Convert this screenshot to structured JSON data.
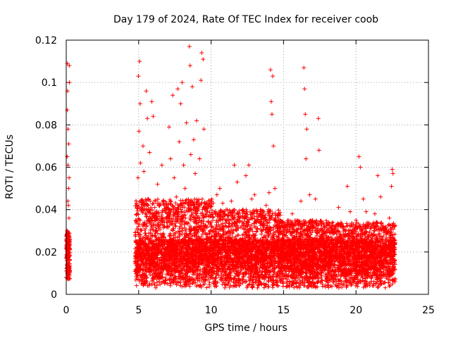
{
  "chart_data": {
    "type": "scatter",
    "title": "Day 179 of 2024, Rate Of TEC Index for receiver coob",
    "xlabel": "GPS time / hours",
    "ylabel": "ROTI / TECUs",
    "xlim": [
      0,
      25
    ],
    "ylim": [
      0,
      0.12
    ],
    "x_ticks": [
      0,
      5,
      10,
      15,
      20,
      25
    ],
    "y_ticks": [
      0,
      0.02,
      0.04,
      0.06,
      0.08,
      0.1,
      0.12
    ],
    "x_tick_labels": [
      "0",
      "5",
      "10",
      "15",
      "20",
      "25"
    ],
    "y_tick_labels": [
      "0",
      "0.02",
      "0.04",
      "0.06",
      "0.08",
      "0.1",
      "0.12"
    ],
    "grid": true,
    "marker": "+",
    "series": [
      {
        "name": "ROTI",
        "color": "#ff0000",
        "points": [
          [
            0.02,
            0.011
          ],
          [
            0.04,
            0.008
          ],
          [
            0.05,
            0.018
          ],
          [
            0.06,
            0.03
          ],
          [
            0.06,
            0.065
          ],
          [
            0.07,
            0.087
          ],
          [
            0.08,
            0.109
          ],
          [
            0.09,
            0.096
          ],
          [
            0.1,
            0.014
          ],
          [
            0.11,
            0.044
          ],
          [
            0.12,
            0.061
          ],
          [
            0.12,
            0.078
          ],
          [
            0.13,
            0.01
          ],
          [
            0.14,
            0.027
          ],
          [
            0.15,
            0.042
          ],
          [
            0.16,
            0.05
          ],
          [
            0.17,
            0.071
          ],
          [
            0.18,
            0.012
          ],
          [
            0.19,
            0.036
          ],
          [
            0.2,
            0.055
          ],
          [
            0.21,
            0.108
          ],
          [
            0.22,
            0.1
          ],
          [
            0.23,
            0.009
          ],
          [
            0.24,
            0.016
          ],
          [
            0.25,
            0.021
          ],
          [
            4.82,
            0.011
          ],
          [
            4.86,
            0.02
          ],
          [
            4.9,
            0.038
          ],
          [
            4.95,
            0.055
          ],
          [
            4.98,
            0.103
          ],
          [
            5.02,
            0.077
          ],
          [
            5.06,
            0.11
          ],
          [
            5.1,
            0.09
          ],
          [
            5.12,
            0.062
          ],
          [
            5.16,
            0.04
          ],
          [
            5.2,
            0.024
          ],
          [
            5.25,
            0.015
          ],
          [
            5.3,
            0.07
          ],
          [
            5.36,
            0.058
          ],
          [
            5.45,
            0.031
          ],
          [
            5.52,
            0.096
          ],
          [
            5.6,
            0.083
          ],
          [
            5.68,
            0.045
          ],
          [
            5.75,
            0.067
          ],
          [
            5.82,
            0.029
          ],
          [
            5.9,
            0.091
          ],
          [
            6.0,
            0.084
          ],
          [
            6.1,
            0.019
          ],
          [
            6.2,
            0.037
          ],
          [
            6.3,
            0.052
          ],
          [
            6.4,
            0.043
          ],
          [
            6.5,
            0.033
          ],
          [
            6.6,
            0.061
          ],
          [
            6.7,
            0.028
          ],
          [
            6.8,
            0.017
          ],
          [
            6.9,
            0.041
          ],
          [
            7.0,
            0.034
          ],
          [
            7.1,
            0.079
          ],
          [
            7.2,
            0.064
          ],
          [
            7.35,
            0.094
          ],
          [
            7.45,
            0.055
          ],
          [
            7.6,
            0.046
          ],
          [
            7.7,
            0.097
          ],
          [
            7.8,
            0.072
          ],
          [
            7.9,
            0.09
          ],
          [
            8.0,
            0.1
          ],
          [
            8.1,
            0.061
          ],
          [
            8.2,
            0.05
          ],
          [
            8.3,
            0.081
          ],
          [
            8.4,
            0.039
          ],
          [
            8.5,
            0.117
          ],
          [
            8.55,
            0.108
          ],
          [
            8.6,
            0.066
          ],
          [
            8.7,
            0.098
          ],
          [
            8.8,
            0.073
          ],
          [
            8.9,
            0.057
          ],
          [
            9.0,
            0.082
          ],
          [
            9.1,
            0.044
          ],
          [
            9.2,
            0.064
          ],
          [
            9.3,
            0.101
          ],
          [
            9.35,
            0.114
          ],
          [
            9.45,
            0.111
          ],
          [
            9.5,
            0.078
          ],
          [
            9.6,
            0.029
          ],
          [
            9.8,
            0.037
          ],
          [
            10.0,
            0.034
          ],
          [
            10.2,
            0.026
          ],
          [
            10.4,
            0.047
          ],
          [
            10.6,
            0.05
          ],
          [
            10.8,
            0.043
          ],
          [
            11.0,
            0.024
          ],
          [
            11.2,
            0.032
          ],
          [
            11.4,
            0.044
          ],
          [
            11.6,
            0.061
          ],
          [
            11.8,
            0.053
          ],
          [
            12.0,
            0.036
          ],
          [
            12.2,
            0.04
          ],
          [
            12.4,
            0.056
          ],
          [
            12.6,
            0.061
          ],
          [
            12.8,
            0.045
          ],
          [
            13.0,
            0.047
          ],
          [
            13.2,
            0.031
          ],
          [
            13.4,
            0.04
          ],
          [
            13.6,
            0.027
          ],
          [
            13.8,
            0.042
          ],
          [
            14.0,
            0.048
          ],
          [
            14.1,
            0.106
          ],
          [
            14.15,
            0.091
          ],
          [
            14.2,
            0.085
          ],
          [
            14.25,
            0.103
          ],
          [
            14.3,
            0.07
          ],
          [
            14.4,
            0.05
          ],
          [
            14.6,
            0.033
          ],
          [
            14.8,
            0.025
          ],
          [
            15.0,
            0.03
          ],
          [
            15.2,
            0.017
          ],
          [
            15.4,
            0.022
          ],
          [
            15.6,
            0.038
          ],
          [
            15.8,
            0.035
          ],
          [
            16.0,
            0.033
          ],
          [
            16.2,
            0.044
          ],
          [
            16.4,
            0.107
          ],
          [
            16.45,
            0.097
          ],
          [
            16.5,
            0.085
          ],
          [
            16.55,
            0.064
          ],
          [
            16.6,
            0.078
          ],
          [
            16.8,
            0.047
          ],
          [
            17.0,
            0.035
          ],
          [
            17.2,
            0.045
          ],
          [
            17.4,
            0.083
          ],
          [
            17.45,
            0.068
          ],
          [
            17.6,
            0.031
          ],
          [
            17.8,
            0.025
          ],
          [
            18.0,
            0.022
          ],
          [
            18.2,
            0.029
          ],
          [
            18.4,
            0.034
          ],
          [
            18.6,
            0.021
          ],
          [
            18.8,
            0.041
          ],
          [
            19.0,
            0.033
          ],
          [
            19.2,
            0.028
          ],
          [
            19.4,
            0.051
          ],
          [
            19.6,
            0.039
          ],
          [
            19.8,
            0.025
          ],
          [
            20.0,
            0.035
          ],
          [
            20.2,
            0.065
          ],
          [
            20.3,
            0.06
          ],
          [
            20.5,
            0.045
          ],
          [
            20.7,
            0.039
          ],
          [
            20.9,
            0.028
          ],
          [
            21.1,
            0.032
          ],
          [
            21.3,
            0.038
          ],
          [
            21.5,
            0.056
          ],
          [
            21.7,
            0.046
          ],
          [
            21.9,
            0.03
          ],
          [
            22.1,
            0.022
          ],
          [
            22.3,
            0.036
          ],
          [
            22.45,
            0.051
          ],
          [
            22.5,
            0.059
          ],
          [
            22.55,
            0.057
          ],
          [
            22.6,
            0.02
          ],
          [
            22.65,
            0.012
          ],
          [
            22.7,
            0.006
          ]
        ],
        "bands": [
          {
            "x_start": 0.0,
            "x_end": 0.25,
            "y_min": 0.007,
            "y_max": 0.03,
            "count": 180
          },
          {
            "x_start": 4.75,
            "x_end": 22.7,
            "y_min": 0.003,
            "y_max": 0.026,
            "count": 4300
          },
          {
            "x_start": 4.75,
            "x_end": 10.2,
            "y_min": 0.01,
            "y_max": 0.045,
            "count": 1000
          },
          {
            "x_start": 10.2,
            "x_end": 14.8,
            "y_min": 0.01,
            "y_max": 0.04,
            "count": 800
          },
          {
            "x_start": 14.8,
            "x_end": 18.3,
            "y_min": 0.01,
            "y_max": 0.035,
            "count": 650
          },
          {
            "x_start": 18.3,
            "x_end": 22.7,
            "y_min": 0.008,
            "y_max": 0.034,
            "count": 700
          }
        ]
      }
    ]
  }
}
